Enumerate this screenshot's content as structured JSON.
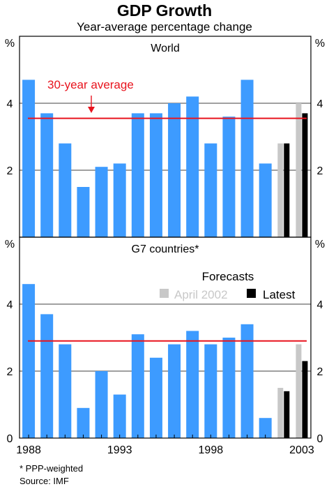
{
  "title": "GDP Growth",
  "subtitle": "Year-average percentage change",
  "footnotes": [
    "*   PPP-weighted",
    "Source: IMF"
  ],
  "colors": {
    "bar": "#3d9bff",
    "april_2002": "#c8c8c8",
    "latest": "#000000",
    "average_line": "#e8141e",
    "annotation": "#e8141e"
  },
  "chart_data": [
    {
      "type": "bar",
      "title": "World",
      "unit_label": "%",
      "ylim": [
        0,
        6
      ],
      "yticks": [
        2,
        4
      ],
      "grid": true,
      "x": [
        1988,
        1989,
        1990,
        1991,
        1992,
        1993,
        1994,
        1995,
        1996,
        1997,
        1998,
        1999,
        2000,
        2001
      ],
      "values": [
        4.7,
        3.7,
        2.8,
        1.5,
        2.1,
        2.2,
        3.7,
        3.7,
        4.0,
        4.2,
        2.8,
        3.6,
        4.7,
        2.2
      ],
      "forecasts": {
        "x": [
          2002,
          2003
        ],
        "series": [
          {
            "name": "April 2002",
            "values": [
              2.8,
              4.0
            ]
          },
          {
            "name": "Latest",
            "values": [
              2.8,
              3.7
            ]
          }
        ]
      },
      "average_line": 3.55,
      "annotation": "30-year average"
    },
    {
      "type": "bar",
      "title": "G7 countries*",
      "unit_label": "%",
      "ylim": [
        0,
        6
      ],
      "yticks": [
        0,
        2,
        4
      ],
      "grid": true,
      "x": [
        1988,
        1989,
        1990,
        1991,
        1992,
        1993,
        1994,
        1995,
        1996,
        1997,
        1998,
        1999,
        2000,
        2001
      ],
      "values": [
        4.6,
        3.7,
        2.8,
        0.9,
        2.0,
        1.3,
        3.1,
        2.4,
        2.8,
        3.2,
        2.8,
        3.0,
        3.4,
        0.6
      ],
      "forecasts": {
        "x": [
          2002,
          2003
        ],
        "series": [
          {
            "name": "April 2002",
            "values": [
              1.5,
              2.8
            ]
          },
          {
            "name": "Latest",
            "values": [
              1.4,
              2.3
            ]
          }
        ]
      },
      "average_line": 2.9,
      "legend_title": "Forecasts",
      "legend_placement": "top-right",
      "xtick_labels": [
        "1988",
        "1993",
        "1998",
        "2003"
      ]
    }
  ]
}
